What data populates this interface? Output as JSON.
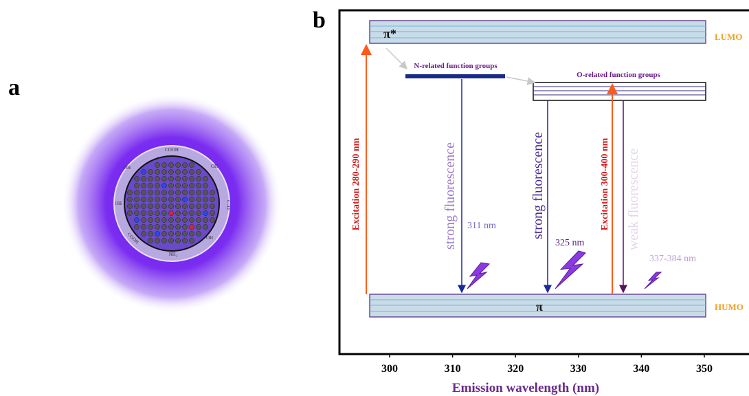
{
  "panel_a": {
    "label": "a",
    "groups": [
      "COOH",
      "OH",
      "OH",
      "C=O",
      "OH",
      "NH₂",
      "COOH",
      "OH"
    ]
  },
  "panel_b": {
    "label": "b",
    "lumo_symbol": "π*",
    "lumo_label": "LUMO",
    "humo_symbol": "π",
    "humo_label": "HUMO",
    "n_groups": "N-related function groups",
    "o_groups": "O-related function groups",
    "excitation_1": "Excitation 280-290 nm",
    "excitation_2": "Excitation 300-400 nm",
    "fluorescence_1": "strong fluorescence",
    "fluorescence_2": "strong fluorescence",
    "fluorescence_3": "weak fluorescence",
    "wavelength_1": "311 nm",
    "wavelength_2": "325 nm",
    "wavelength_3": "337-384 nm",
    "x_axis": {
      "title": "Emission wavelength (nm)",
      "ticks": [
        300,
        310,
        320,
        330,
        340,
        350
      ]
    }
  }
}
